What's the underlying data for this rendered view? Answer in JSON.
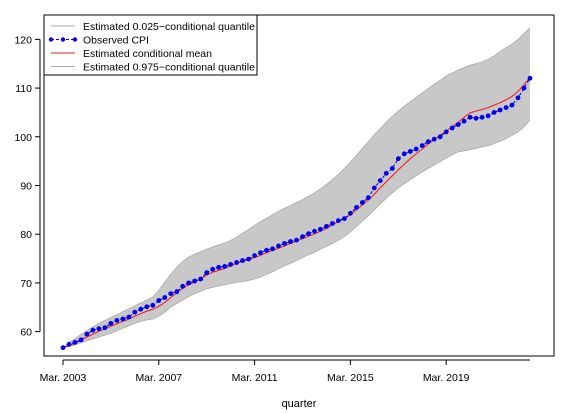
{
  "chart_data": {
    "type": "line",
    "title": "",
    "xlabel": "quarter",
    "ylabel": "",
    "ylim": [
      55,
      125
    ],
    "yticks": [
      60,
      70,
      80,
      90,
      100,
      110,
      120
    ],
    "xticks": [
      {
        "label": "Mar. 2003",
        "index": 0
      },
      {
        "label": "Mar. 2007",
        "index": 16
      },
      {
        "label": "Mar. 2011",
        "index": 32
      },
      {
        "label": "Mar. 2015",
        "index": 48
      },
      {
        "label": "Mar. 2019",
        "index": 64
      }
    ],
    "grid": false,
    "legend_position": "top-left",
    "legend": [
      {
        "label": "Estimated 0.025−conditional quantile",
        "style": "band"
      },
      {
        "label": "Observed CPI",
        "style": "dots-dashed"
      },
      {
        "label": "Estimated conditional mean",
        "style": "line"
      },
      {
        "label": "Estimated 0.975−conditional quantile",
        "style": "band"
      }
    ],
    "colors": {
      "observed": "#0000ee",
      "mean": "#ee2222",
      "band": "#c8c8c8",
      "band_edge": "#aaaaaa"
    },
    "x_count": 79,
    "series": [
      {
        "name": "Observed CPI",
        "values": [
          56.7,
          57.4,
          57.8,
          58.3,
          59.5,
          60.3,
          60.6,
          60.8,
          61.7,
          62.3,
          62.6,
          63.0,
          64.0,
          64.6,
          65.1,
          65.4,
          66.4,
          67.0,
          67.8,
          68.2,
          69.3,
          70.0,
          70.4,
          70.8,
          72.1,
          72.8,
          73.2,
          73.4,
          73.8,
          74.2,
          74.6,
          74.9,
          75.6,
          76.2,
          76.7,
          77.0,
          77.6,
          78.1,
          78.5,
          78.8,
          79.5,
          80.1,
          80.6,
          81.0,
          81.6,
          82.2,
          82.8,
          83.2,
          84.3,
          85.5,
          86.5,
          87.5,
          89.5,
          91.0,
          92.5,
          93.5,
          95.5,
          96.5,
          97.0,
          97.5,
          98.2,
          99.0,
          99.5,
          100.0,
          101.0,
          101.8,
          102.5,
          103.2,
          104.0,
          103.8,
          104.0,
          104.3,
          105.0,
          105.5,
          106.0,
          106.5,
          108.0,
          110.0,
          112.0
        ]
      },
      {
        "name": "Estimated conditional mean",
        "values": [
          56.7,
          57.1,
          57.6,
          58.2,
          58.9,
          59.5,
          60.1,
          60.6,
          61.1,
          61.6,
          62.1,
          62.6,
          63.2,
          63.7,
          64.2,
          64.6,
          65.2,
          66.0,
          67.0,
          68.0,
          68.9,
          69.6,
          70.2,
          70.8,
          71.6,
          72.2,
          72.6,
          73.0,
          73.5,
          74.0,
          74.4,
          74.8,
          75.2,
          75.7,
          76.2,
          76.7,
          77.1,
          77.6,
          78.1,
          78.6,
          79.1,
          79.6,
          80.1,
          80.6,
          81.2,
          81.9,
          82.6,
          83.2,
          84.0,
          85.0,
          86.0,
          87.0,
          88.2,
          89.5,
          90.8,
          92.0,
          93.2,
          94.4,
          95.5,
          96.5,
          97.5,
          98.5,
          99.4,
          100.3,
          101.2,
          102.1,
          103.0,
          104.0,
          104.9,
          105.3,
          105.6,
          106.0,
          106.5,
          107.0,
          107.6,
          108.3,
          109.3,
          110.7,
          112.2
        ]
      }
    ],
    "band": {
      "lower": [
        56.7,
        56.9,
        57.3,
        57.7,
        58.1,
        58.5,
        58.9,
        59.3,
        59.7,
        60.2,
        60.7,
        61.2,
        61.7,
        62.1,
        62.4,
        62.6,
        63.2,
        64.0,
        65.0,
        65.8,
        66.5,
        67.2,
        67.8,
        68.3,
        68.8,
        69.1,
        69.4,
        69.6,
        69.9,
        70.1,
        70.3,
        70.5,
        70.8,
        71.2,
        71.8,
        72.3,
        72.9,
        73.5,
        74.0,
        74.6,
        75.2,
        75.8,
        76.3,
        76.9,
        77.5,
        78.1,
        78.8,
        79.5,
        80.5,
        81.6,
        82.7,
        83.8,
        85.0,
        86.2,
        87.4,
        88.5,
        89.5,
        90.4,
        91.2,
        92.0,
        92.8,
        93.5,
        94.2,
        94.9,
        95.6,
        96.3,
        96.9,
        97.1,
        97.3,
        97.6,
        97.9,
        98.2,
        98.6,
        99.1,
        99.6,
        100.3,
        101.0,
        102.0,
        103.5
      ],
      "upper": [
        56.7,
        57.8,
        58.6,
        59.4,
        60.2,
        61.0,
        61.7,
        62.3,
        62.9,
        63.5,
        64.1,
        64.7,
        65.3,
        65.9,
        66.5,
        67.1,
        68.5,
        70.2,
        71.8,
        73.2,
        74.4,
        75.3,
        75.9,
        76.4,
        76.9,
        77.4,
        77.8,
        78.2,
        78.7,
        79.4,
        80.2,
        81.0,
        81.8,
        82.6,
        83.3,
        84.0,
        84.7,
        85.3,
        85.9,
        86.5,
        87.1,
        87.8,
        88.5,
        89.3,
        90.2,
        91.2,
        92.3,
        93.5,
        94.8,
        96.2,
        97.6,
        99.0,
        100.4,
        101.7,
        103.0,
        104.2,
        105.3,
        106.3,
        107.2,
        108.1,
        109.0,
        109.9,
        110.8,
        111.6,
        112.5,
        113.1,
        113.7,
        114.2,
        114.7,
        115.0,
        115.4,
        115.9,
        116.6,
        117.5,
        118.3,
        119.0,
        120.0,
        121.2,
        122.4
      ]
    }
  }
}
